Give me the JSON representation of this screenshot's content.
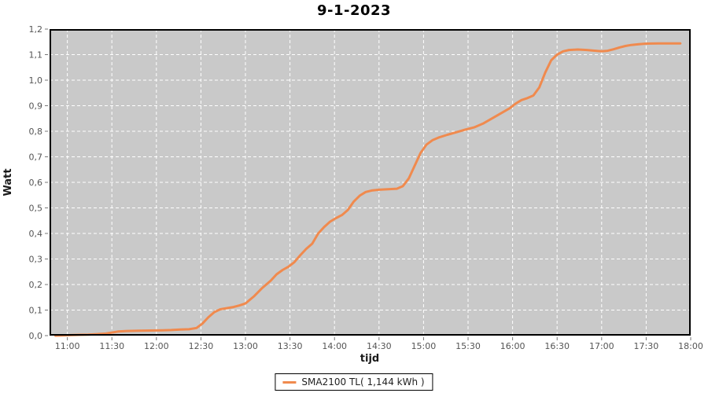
{
  "page": {
    "title": "9-1-2023"
  },
  "colors": {
    "page_bg": "#ffffff",
    "plot_bg": "#c9c9c9",
    "grid": "#ffffff",
    "border": "#000000",
    "tick": "#777777",
    "axis_text": "#555555",
    "series": "#f08a4e"
  },
  "chart_data": {
    "type": "line",
    "title": "9-1-2023",
    "xlabel": "tijd",
    "ylabel": "Watt",
    "ylim": [
      0,
      1.2
    ],
    "xlim_minutes": [
      648,
      1080
    ],
    "grid": "white dashed on gray, every 0.1 y and every 30 min x",
    "x_ticks": [
      "11:00",
      "11:30",
      "12:00",
      "12:30",
      "13:00",
      "13:30",
      "14:00",
      "14:30",
      "15:00",
      "15:30",
      "16:00",
      "16:30",
      "17:00",
      "17:30",
      "18:00"
    ],
    "y_ticks": [
      {
        "value": 0.0,
        "label": "0,0"
      },
      {
        "value": 0.1,
        "label": "0,1"
      },
      {
        "value": 0.2,
        "label": "0,2"
      },
      {
        "value": 0.3,
        "label": "0,3"
      },
      {
        "value": 0.4,
        "label": "0,4"
      },
      {
        "value": 0.5,
        "label": "0,5"
      },
      {
        "value": 0.6,
        "label": "0,6"
      },
      {
        "value": 0.7,
        "label": "0,7"
      },
      {
        "value": 0.8,
        "label": "0,8"
      },
      {
        "value": 0.9,
        "label": "0,9"
      },
      {
        "value": 1.0,
        "label": "1,0"
      },
      {
        "value": 1.1,
        "label": "1,1"
      },
      {
        "value": 1.2,
        "label": "1,2"
      }
    ],
    "legend": {
      "position": "bottom-center",
      "entries": [
        {
          "label": "SMA2100 TL( 1,144 kWh )",
          "color": "#f08a4e"
        }
      ]
    },
    "series": [
      {
        "name": "SMA2100 TL",
        "total_label": "1,144 kWh",
        "color": "#f08a4e",
        "points": [
          [
            "10:52",
            0.0
          ],
          [
            "10:57",
            0.001
          ],
          [
            "11:02",
            0.002
          ],
          [
            "11:08",
            0.003
          ],
          [
            "11:14",
            0.004
          ],
          [
            "11:20",
            0.006
          ],
          [
            "11:26",
            0.008
          ],
          [
            "11:30",
            0.012
          ],
          [
            "11:34",
            0.016
          ],
          [
            "11:40",
            0.018
          ],
          [
            "11:48",
            0.019
          ],
          [
            "11:56",
            0.02
          ],
          [
            "12:04",
            0.021
          ],
          [
            "12:10",
            0.022
          ],
          [
            "12:16",
            0.024
          ],
          [
            "12:22",
            0.025
          ],
          [
            "12:27",
            0.03
          ],
          [
            "12:31",
            0.047
          ],
          [
            "12:35",
            0.072
          ],
          [
            "12:39",
            0.092
          ],
          [
            "12:43",
            0.103
          ],
          [
            "12:48",
            0.108
          ],
          [
            "12:52",
            0.112
          ],
          [
            "12:56",
            0.118
          ],
          [
            "13:00",
            0.126
          ],
          [
            "13:06",
            0.155
          ],
          [
            "13:11",
            0.185
          ],
          [
            "13:17",
            0.215
          ],
          [
            "13:21",
            0.24
          ],
          [
            "13:25",
            0.257
          ],
          [
            "13:29",
            0.27
          ],
          [
            "13:33",
            0.288
          ],
          [
            "13:37",
            0.315
          ],
          [
            "13:41",
            0.34
          ],
          [
            "13:45",
            0.36
          ],
          [
            "13:49",
            0.4
          ],
          [
            "13:53",
            0.425
          ],
          [
            "13:57",
            0.446
          ],
          [
            "14:01",
            0.46
          ],
          [
            "14:05",
            0.472
          ],
          [
            "14:09",
            0.492
          ],
          [
            "14:13",
            0.525
          ],
          [
            "14:17",
            0.548
          ],
          [
            "14:21",
            0.562
          ],
          [
            "14:25",
            0.568
          ],
          [
            "14:30",
            0.571
          ],
          [
            "14:36",
            0.573
          ],
          [
            "14:42",
            0.575
          ],
          [
            "14:46",
            0.585
          ],
          [
            "14:50",
            0.615
          ],
          [
            "14:54",
            0.665
          ],
          [
            "14:58",
            0.715
          ],
          [
            "15:02",
            0.748
          ],
          [
            "15:06",
            0.765
          ],
          [
            "15:10",
            0.775
          ],
          [
            "15:16",
            0.786
          ],
          [
            "15:22",
            0.796
          ],
          [
            "15:28",
            0.806
          ],
          [
            "15:34",
            0.815
          ],
          [
            "15:40",
            0.83
          ],
          [
            "15:46",
            0.85
          ],
          [
            "15:52",
            0.87
          ],
          [
            "15:58",
            0.89
          ],
          [
            "16:02",
            0.908
          ],
          [
            "16:06",
            0.922
          ],
          [
            "16:10",
            0.93
          ],
          [
            "16:14",
            0.94
          ],
          [
            "16:18",
            0.972
          ],
          [
            "16:22",
            1.03
          ],
          [
            "16:26",
            1.078
          ],
          [
            "16:30",
            1.1
          ],
          [
            "16:34",
            1.113
          ],
          [
            "16:38",
            1.118
          ],
          [
            "16:44",
            1.12
          ],
          [
            "16:50",
            1.118
          ],
          [
            "16:56",
            1.115
          ],
          [
            "17:00",
            1.113
          ],
          [
            "17:04",
            1.115
          ],
          [
            "17:08",
            1.121
          ],
          [
            "17:12",
            1.128
          ],
          [
            "17:16",
            1.134
          ],
          [
            "17:20",
            1.138
          ],
          [
            "17:25",
            1.141
          ],
          [
            "17:30",
            1.143
          ],
          [
            "17:38",
            1.144
          ],
          [
            "17:46",
            1.144
          ],
          [
            "17:53",
            1.144
          ]
        ]
      }
    ]
  }
}
